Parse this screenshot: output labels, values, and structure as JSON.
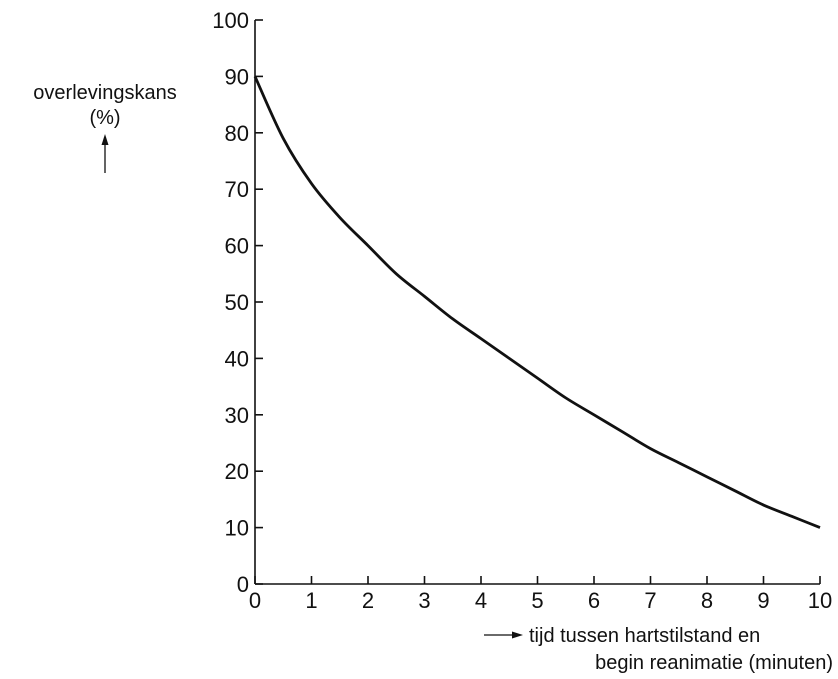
{
  "chart_data": {
    "type": "line",
    "xlabel_line1": "tijd tussen hartstilstand en",
    "xlabel_line2": "begin reanimatie (minuten)",
    "ylabel_line1": "overlevingskans",
    "ylabel_line2": "(%)",
    "xlim": [
      0,
      10
    ],
    "ylim": [
      0,
      100
    ],
    "x_ticks": [
      0,
      1,
      2,
      3,
      4,
      5,
      6,
      7,
      8,
      9,
      10
    ],
    "y_ticks": [
      0,
      10,
      20,
      30,
      40,
      50,
      60,
      70,
      80,
      90,
      100
    ],
    "grid": false,
    "series": [
      {
        "x": [
          0,
          0.5,
          1,
          1.5,
          2,
          2.5,
          3,
          3.5,
          4,
          4.5,
          5,
          5.5,
          6,
          6.5,
          7,
          7.5,
          8,
          8.5,
          9,
          9.5,
          10
        ],
        "y": [
          90,
          79,
          71,
          65,
          60,
          55,
          51,
          47,
          43.5,
          40,
          36.5,
          33,
          30,
          27,
          24,
          21.5,
          19,
          16.5,
          14,
          12,
          10
        ]
      }
    ],
    "colors": {
      "line": "#111111"
    }
  }
}
